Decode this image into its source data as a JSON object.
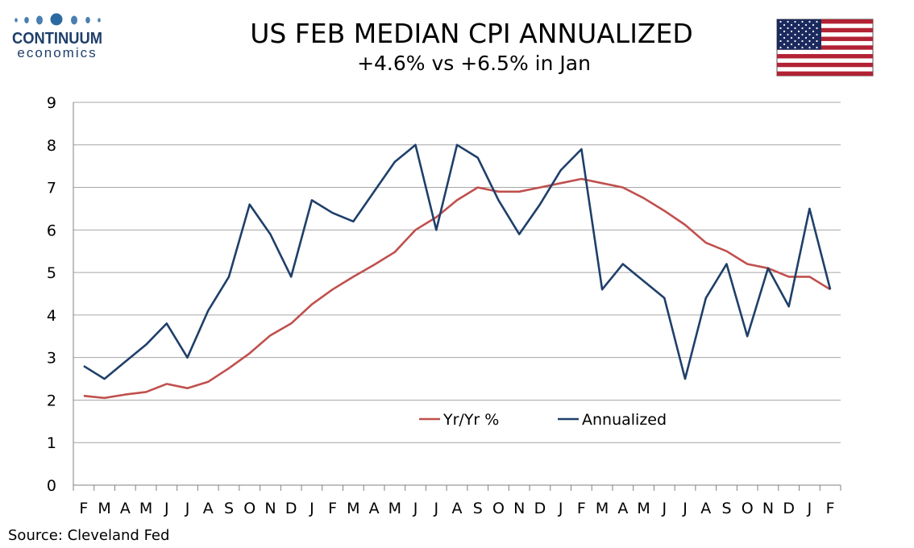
{
  "logo": {
    "line1": "CONTINUUM",
    "line2": "economics"
  },
  "flag_icon": "us-flag-icon",
  "source": "Source: Cleveland Fed",
  "chart_data": {
    "type": "line",
    "title": "US FEB MEDIAN CPI ANNUALIZED",
    "subtitle": "+4.6% vs +6.5% in Jan",
    "xlabel": "",
    "ylabel": "",
    "ylim": [
      0,
      9
    ],
    "yticks": [
      0,
      1,
      2,
      3,
      4,
      5,
      6,
      7,
      8,
      9
    ],
    "grid": true,
    "legend_position": "lower-center",
    "categories": [
      "F",
      "M",
      "A",
      "M",
      "J",
      "J",
      "A",
      "S",
      "O",
      "N",
      "D",
      "J",
      "F",
      "M",
      "A",
      "M",
      "J",
      "J",
      "A",
      "S",
      "O",
      "N",
      "D",
      "J",
      "F",
      "M",
      "A",
      "M",
      "J",
      "J",
      "A",
      "S",
      "O",
      "N",
      "D",
      "J",
      "F"
    ],
    "series": [
      {
        "name": "Yr/Yr %",
        "color": "#c0504d",
        "values": [
          2.1,
          2.05,
          2.13,
          2.19,
          2.38,
          2.28,
          2.43,
          2.75,
          3.1,
          3.52,
          3.8,
          4.25,
          4.6,
          4.9,
          5.18,
          5.48,
          6.0,
          6.3,
          6.7,
          7.0,
          6.9,
          6.9,
          7.0,
          7.1,
          7.2,
          7.1,
          7.0,
          6.75,
          6.45,
          6.12,
          5.7,
          5.5,
          5.2,
          5.1,
          4.9,
          4.9,
          4.6
        ]
      },
      {
        "name": "Annualized",
        "color": "#1f3f6a",
        "values": [
          2.8,
          2.5,
          2.9,
          3.3,
          3.8,
          3.0,
          4.1,
          4.9,
          6.6,
          5.9,
          4.9,
          6.7,
          6.4,
          6.2,
          6.9,
          7.6,
          8.0,
          6.0,
          8.0,
          7.7,
          6.7,
          5.9,
          6.6,
          7.4,
          7.9,
          4.6,
          5.2,
          4.8,
          4.4,
          2.5,
          4.4,
          5.2,
          3.5,
          5.1,
          4.2,
          6.5,
          4.6
        ]
      }
    ]
  }
}
